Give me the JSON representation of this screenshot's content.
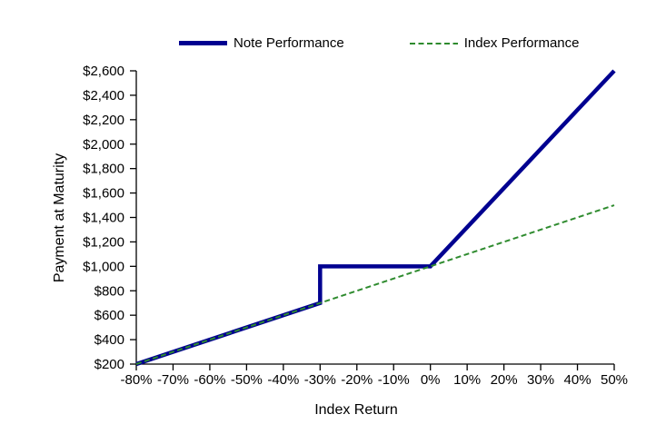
{
  "chart_data": {
    "type": "line",
    "xlabel": "Index Return",
    "ylabel": "Payment at Maturity",
    "xlim": [
      -80,
      50
    ],
    "ylim": [
      200,
      2600
    ],
    "x_tick_values": [
      -80,
      -70,
      -60,
      -50,
      -40,
      -30,
      -20,
      -10,
      0,
      10,
      20,
      30,
      40,
      50
    ],
    "x_tick_labels": [
      "-80%",
      "-70%",
      "-60%",
      "-50%",
      "-40%",
      "-30%",
      "-20%",
      "-10%",
      "0%",
      "10%",
      "20%",
      "30%",
      "40%",
      "50%"
    ],
    "y_tick_values": [
      200,
      400,
      600,
      800,
      1000,
      1200,
      1400,
      1600,
      1800,
      2000,
      2200,
      2400,
      2600
    ],
    "y_tick_labels": [
      "$200",
      "$400",
      "$600",
      "$800",
      "$1,000",
      "$1,200",
      "$1,400",
      "$1,600",
      "$1,800",
      "$2,000",
      "$2,200",
      "$2,400",
      "$2,600"
    ],
    "grid": false,
    "legend_position": "top",
    "axis_color": "#000000",
    "background_color": "#FFFFFF",
    "series": [
      {
        "name": "Note Performance",
        "color": "#000090",
        "line_style": "solid",
        "line_width": 4.5,
        "points": [
          [
            -80,
            200
          ],
          [
            -30,
            700
          ],
          [
            -30,
            1000
          ],
          [
            0,
            1000
          ],
          [
            50,
            2600
          ]
        ]
      },
      {
        "name": "Index Performance",
        "color": "#2E8B2E",
        "line_style": "dashed",
        "line_width": 2,
        "points": [
          [
            -80,
            200
          ],
          [
            50,
            1500
          ]
        ]
      }
    ]
  }
}
